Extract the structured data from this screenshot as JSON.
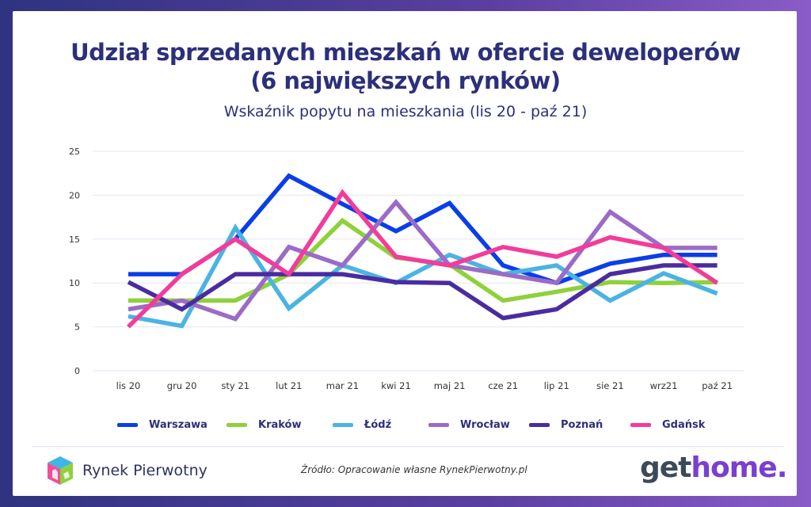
{
  "title_line1": "Udział sprzedanych mieszkań w ofercie deweloperów",
  "title_line2": "(6 największych rynków)",
  "subtitle": "Wskaźnik popytu na mieszkania (lis 20 - paź 21)",
  "source": "Źródło: Opracowanie własne RynekPierwotny.pl",
  "logo_left": "Rynek Pierwotny",
  "logo_right_a": "get",
  "logo_right_b": "home.",
  "chart_data": {
    "type": "line",
    "categories": [
      "lis 20",
      "gru 20",
      "sty 21",
      "lut 21",
      "mar 21",
      "kwi 21",
      "maj 21",
      "cze 21",
      "lip 21",
      "sie 21",
      "wrz21",
      "paź 21"
    ],
    "ylim": [
      0,
      25
    ],
    "yticks": [
      0,
      5,
      10,
      15,
      20,
      25
    ],
    "grid": true,
    "legend_position": "bottom",
    "series": [
      {
        "name": "Warszawa",
        "color": "#0a3ee8",
        "values": [
          11,
          11,
          15,
          22.2,
          19,
          15.9,
          19.1,
          12,
          10,
          12.2,
          13.2,
          13.2
        ]
      },
      {
        "name": "Kraków",
        "color": "#8ed13a",
        "values": [
          8,
          8,
          8,
          11,
          17.1,
          12.9,
          12.1,
          8,
          9,
          10.1,
          10,
          10.1
        ]
      },
      {
        "name": "Łódź",
        "color": "#4bb3e3",
        "values": [
          6.2,
          5.1,
          16.3,
          7.1,
          12,
          10,
          13.2,
          11,
          12,
          8,
          11.1,
          8.8
        ]
      },
      {
        "name": "Wrocław",
        "color": "#9b6bc6",
        "values": [
          7,
          8,
          5.9,
          14.1,
          12,
          19.2,
          12,
          11,
          10,
          18.1,
          14,
          14
        ]
      },
      {
        "name": "Poznań",
        "color": "#4a2ca0",
        "values": [
          10.1,
          7,
          11,
          11,
          11,
          10.1,
          10,
          6,
          7,
          11,
          12,
          12
        ]
      },
      {
        "name": "Gdańsk",
        "color": "#f23c9a",
        "values": [
          5,
          11,
          15,
          11,
          20.3,
          13,
          12,
          14.1,
          13,
          15.2,
          14,
          10
        ]
      }
    ]
  }
}
